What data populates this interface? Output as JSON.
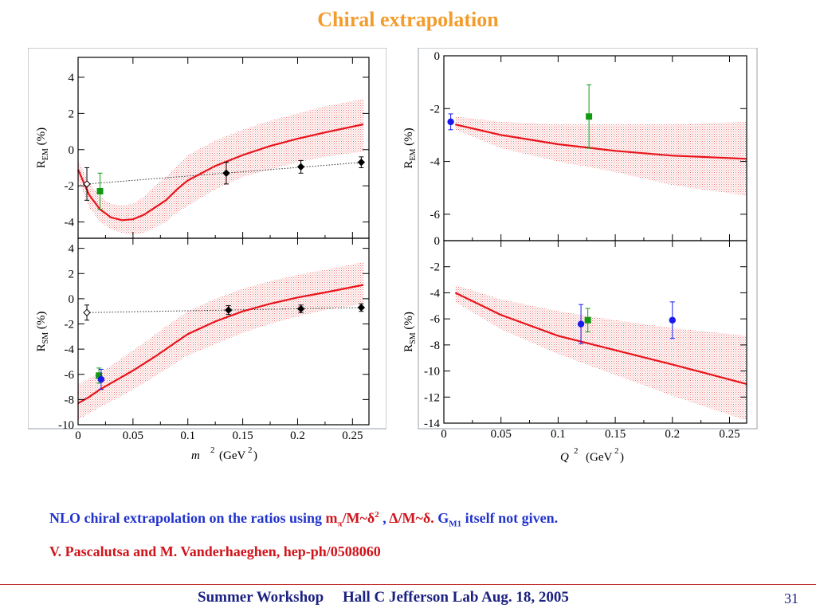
{
  "slide": {
    "title": "Chiral extrapolation",
    "caption": {
      "part1": "NLO chiral extrapolation on the ratios using ",
      "mpi_m": "m",
      "mpi_sub": "π",
      "mpi_rest": "/M~δ",
      "mpi_sup": "2",
      "sep": " , ",
      "delta": "Δ/M~δ.",
      "part2": " G",
      "g_sub": "M1",
      "part3": " itself not given."
    },
    "citation": "V. Pascalutsa and M. Vanderhaeghen, hep-ph/0508060",
    "footer": "Summer Workshop     Hall C Jefferson Lab Aug. 18, 2005",
    "page_number": "31"
  },
  "colors": {
    "title": "#f39c2b",
    "caption": "#2233cc",
    "highlight": "#d0141b",
    "footer": "#1b2180",
    "curve": "#e8141b",
    "band": "#f0a0a0",
    "green": "#119911",
    "blue": "#1a1aee"
  },
  "chart_data": [
    {
      "id": "left",
      "type": "line",
      "xlabel_var": "m",
      "xlabel_exp": "2",
      "xlabel_unit": "(GeV",
      "xlabel_unit_exp": "2",
      "xlabel_close": ")",
      "xticks": [
        "0",
        "0.05",
        "0.1",
        "0.15",
        "0.2",
        "0.25"
      ],
      "panels": [
        {
          "id": "REM",
          "ylabel": "R",
          "ylabel_sub": "EM",
          "ylabel_unit": "(%)",
          "xlim": [
            0,
            0.265
          ],
          "ylim": [
            -4.9,
            5.1
          ],
          "yticks": [
            -4,
            -2,
            0,
            2,
            4
          ],
          "ytick_labels": [
            "-4",
            "-2",
            "0",
            "2",
            "4"
          ],
          "curve": [
            [
              0,
              -1.1
            ],
            [
              0.005,
              -1.8
            ],
            [
              0.01,
              -2.5
            ],
            [
              0.02,
              -3.3
            ],
            [
              0.03,
              -3.75
            ],
            [
              0.04,
              -3.9
            ],
            [
              0.05,
              -3.85
            ],
            [
              0.06,
              -3.6
            ],
            [
              0.07,
              -3.2
            ],
            [
              0.08,
              -2.8
            ],
            [
              0.09,
              -2.2
            ],
            [
              0.1,
              -1.7
            ],
            [
              0.125,
              -0.9
            ],
            [
              0.15,
              -0.3
            ],
            [
              0.175,
              0.2
            ],
            [
              0.2,
              0.6
            ],
            [
              0.225,
              0.95
            ],
            [
              0.26,
              1.4
            ]
          ],
          "band": [
            [
              0,
              -0.6,
              -1.6
            ],
            [
              0.01,
              -1.8,
              -3.2
            ],
            [
              0.02,
              -2.6,
              -4.0
            ],
            [
              0.03,
              -3.0,
              -4.4
            ],
            [
              0.04,
              -3.1,
              -4.6
            ],
            [
              0.05,
              -3.0,
              -4.7
            ],
            [
              0.06,
              -2.6,
              -4.6
            ],
            [
              0.07,
              -2.0,
              -4.3
            ],
            [
              0.08,
              -1.5,
              -4.0
            ],
            [
              0.09,
              -0.9,
              -3.5
            ],
            [
              0.1,
              -0.3,
              -3.1
            ],
            [
              0.125,
              0.5,
              -2.2
            ],
            [
              0.15,
              1.1,
              -1.5
            ],
            [
              0.175,
              1.6,
              -1.1
            ],
            [
              0.2,
              2.0,
              -0.7
            ],
            [
              0.225,
              2.4,
              -0.4
            ],
            [
              0.26,
              2.8,
              -0.1
            ]
          ],
          "dotted_fit": [
            [
              0.008,
              -1.9
            ],
            [
              0.26,
              -0.7
            ]
          ],
          "points": [
            {
              "x": 0.008,
              "y": -1.9,
              "err": 0.9,
              "style": "open-diamond"
            },
            {
              "x": 0.135,
              "y": -1.3,
              "err": 0.6,
              "style": "diamond"
            },
            {
              "x": 0.203,
              "y": -0.95,
              "err": 0.35,
              "style": "diamond"
            },
            {
              "x": 0.258,
              "y": -0.7,
              "err": 0.3,
              "style": "diamond"
            },
            {
              "x": 0.02,
              "y": -2.3,
              "err": 1.0,
              "style": "green-square"
            }
          ]
        },
        {
          "id": "RSM",
          "ylabel": "R",
          "ylabel_sub": "SM",
          "ylabel_unit": "(%)",
          "xlim": [
            0,
            0.265
          ],
          "ylim": [
            -10,
            4.8
          ],
          "yticks": [
            -10,
            -8,
            -6,
            -4,
            -2,
            0,
            2,
            4
          ],
          "ytick_labels": [
            "-10",
            "-8",
            "-6",
            "-4",
            "-2",
            "0",
            "2",
            "4"
          ],
          "curve": [
            [
              0,
              -8.3
            ],
            [
              0.01,
              -7.8
            ],
            [
              0.02,
              -7.2
            ],
            [
              0.03,
              -6.7
            ],
            [
              0.04,
              -6.2
            ],
            [
              0.05,
              -5.7
            ],
            [
              0.07,
              -4.6
            ],
            [
              0.09,
              -3.4
            ],
            [
              0.1,
              -2.8
            ],
            [
              0.125,
              -1.8
            ],
            [
              0.15,
              -1.0
            ],
            [
              0.175,
              -0.4
            ],
            [
              0.2,
              0.1
            ],
            [
              0.225,
              0.5
            ],
            [
              0.26,
              1.1
            ]
          ],
          "band": [
            [
              0,
              -6.8,
              -9.6
            ],
            [
              0.02,
              -5.9,
              -8.6
            ],
            [
              0.04,
              -4.7,
              -7.7
            ],
            [
              0.06,
              -3.5,
              -6.7
            ],
            [
              0.08,
              -2.2,
              -5.6
            ],
            [
              0.1,
              -1.0,
              -4.5
            ],
            [
              0.125,
              0.0,
              -3.6
            ],
            [
              0.15,
              0.8,
              -2.7
            ],
            [
              0.175,
              1.4,
              -2.0
            ],
            [
              0.2,
              1.9,
              -1.4
            ],
            [
              0.225,
              2.3,
              -0.9
            ],
            [
              0.26,
              2.9,
              -0.4
            ]
          ],
          "dotted_fit": [
            [
              0.008,
              -1.1
            ],
            [
              0.26,
              -0.7
            ]
          ],
          "points": [
            {
              "x": 0.008,
              "y": -1.1,
              "err": 0.6,
              "style": "open-diamond"
            },
            {
              "x": 0.137,
              "y": -0.9,
              "err": 0.35,
              "style": "diamond"
            },
            {
              "x": 0.203,
              "y": -0.8,
              "err": 0.3,
              "style": "diamond"
            },
            {
              "x": 0.258,
              "y": -0.7,
              "err": 0.3,
              "style": "diamond"
            },
            {
              "x": 0.019,
              "y": -6.1,
              "err": 0.6,
              "style": "green-square"
            },
            {
              "x": 0.021,
              "y": -6.4,
              "err": 0.8,
              "style": "blue-circle"
            }
          ]
        }
      ]
    },
    {
      "id": "right",
      "type": "line",
      "xlabel_var": "Q",
      "xlabel_exp": "2",
      "xlabel_unit": "(GeV",
      "xlabel_unit_exp": "2",
      "xlabel_close": ")",
      "xticks": [
        "0",
        "0.05",
        "0.1",
        "0.15",
        "0.2",
        "0.25"
      ],
      "panels": [
        {
          "id": "REM",
          "ylabel": "R",
          "ylabel_sub": "EM",
          "ylabel_unit": "(%)",
          "xlim": [
            0,
            0.265
          ],
          "ylim": [
            -7,
            0
          ],
          "yticks": [
            -6,
            -4,
            -2,
            0
          ],
          "ytick_labels": [
            "-6",
            "-4",
            "-2",
            "0"
          ],
          "curve": [
            [
              0.01,
              -2.6
            ],
            [
              0.05,
              -3.0
            ],
            [
              0.1,
              -3.35
            ],
            [
              0.15,
              -3.6
            ],
            [
              0.2,
              -3.78
            ],
            [
              0.265,
              -3.9
            ]
          ],
          "band": [
            [
              0.01,
              -2.3,
              -2.8
            ],
            [
              0.05,
              -2.5,
              -3.5
            ],
            [
              0.1,
              -2.6,
              -4.0
            ],
            [
              0.15,
              -2.6,
              -4.4
            ],
            [
              0.2,
              -2.6,
              -4.9
            ],
            [
              0.265,
              -2.5,
              -5.3
            ]
          ],
          "points": [
            {
              "x": 0.006,
              "y": -2.5,
              "err": 0.3,
              "style": "blue-circle"
            },
            {
              "x": 0.127,
              "y": -2.3,
              "err": 1.2,
              "style": "green-square"
            }
          ]
        },
        {
          "id": "RSM",
          "ylabel": "R",
          "ylabel_sub": "SM",
          "ylabel_unit": "(%)",
          "xlim": [
            0,
            0.265
          ],
          "ylim": [
            -14,
            0
          ],
          "yticks": [
            -14,
            -12,
            -10,
            -8,
            -6,
            -4,
            -2,
            0
          ],
          "ytick_labels": [
            "-14",
            "-12",
            "-10",
            "-8",
            "-6",
            "-4",
            "-2",
            "0"
          ],
          "curve": [
            [
              0.01,
              -4.0
            ],
            [
              0.05,
              -5.7
            ],
            [
              0.1,
              -7.3
            ],
            [
              0.15,
              -8.4
            ],
            [
              0.2,
              -9.5
            ],
            [
              0.265,
              -11.0
            ]
          ],
          "band": [
            [
              0.01,
              -3.4,
              -4.7
            ],
            [
              0.05,
              -4.5,
              -6.8
            ],
            [
              0.1,
              -5.4,
              -8.7
            ],
            [
              0.15,
              -6.1,
              -10.3
            ],
            [
              0.2,
              -6.7,
              -11.9
            ],
            [
              0.265,
              -7.3,
              -13.8
            ]
          ],
          "points": [
            {
              "x": 0.12,
              "y": -6.4,
              "err": 1.5,
              "style": "blue-circle"
            },
            {
              "x": 0.126,
              "y": -6.1,
              "err": 0.9,
              "style": "green-square"
            },
            {
              "x": 0.2,
              "y": -6.1,
              "err": 1.4,
              "style": "blue-circle"
            }
          ]
        }
      ]
    }
  ]
}
